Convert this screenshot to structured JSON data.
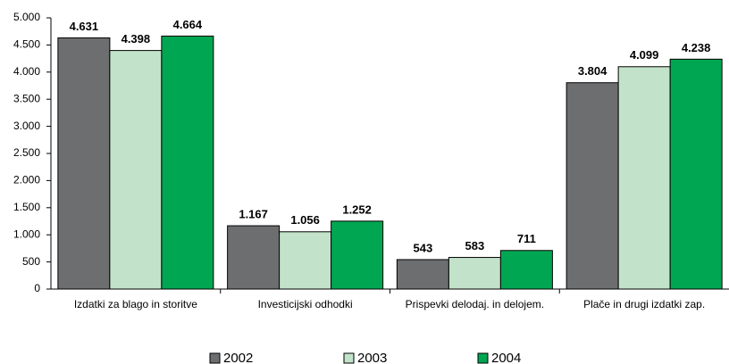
{
  "chart_data": {
    "type": "bar",
    "categories": [
      "Izdatki za blago in storitve",
      "Investicijski odhodki",
      "Prispevki delodaj. in delojem.",
      "Plače in drugi izdatki zap."
    ],
    "series": [
      {
        "name": "2002",
        "color": "#6d6e70",
        "values": [
          4631,
          1167,
          543,
          3804
        ],
        "value_labels": [
          "4.631",
          "1.167",
          "543",
          "3.804"
        ]
      },
      {
        "name": "2003",
        "color": "#c2e3c9",
        "values": [
          4398,
          1056,
          583,
          4099
        ],
        "value_labels": [
          "4.398",
          "1.056",
          "583",
          "4.099"
        ]
      },
      {
        "name": "2004",
        "color": "#00a651",
        "values": [
          4664,
          1252,
          711,
          4238
        ],
        "value_labels": [
          "4.664",
          "1.252",
          "711",
          "4.238"
        ]
      }
    ],
    "ylim": [
      0,
      5000
    ],
    "yticks": [
      0,
      500,
      {
        "value": 1000,
        "label": "1.000"
      },
      {
        "value": 1500,
        "label": "1.500"
      },
      {
        "value": 2000,
        "label": "2.000"
      },
      {
        "value": 2500,
        "label": "2.500"
      },
      {
        "value": 3000,
        "label": "3.000"
      },
      {
        "value": 3500,
        "label": "3.500"
      },
      {
        "value": 4000,
        "label": "4.000"
      },
      {
        "value": 4500,
        "label": "4.500"
      },
      {
        "value": 5000,
        "label": "5.000"
      }
    ],
    "grid": false,
    "legend": "bottom"
  }
}
